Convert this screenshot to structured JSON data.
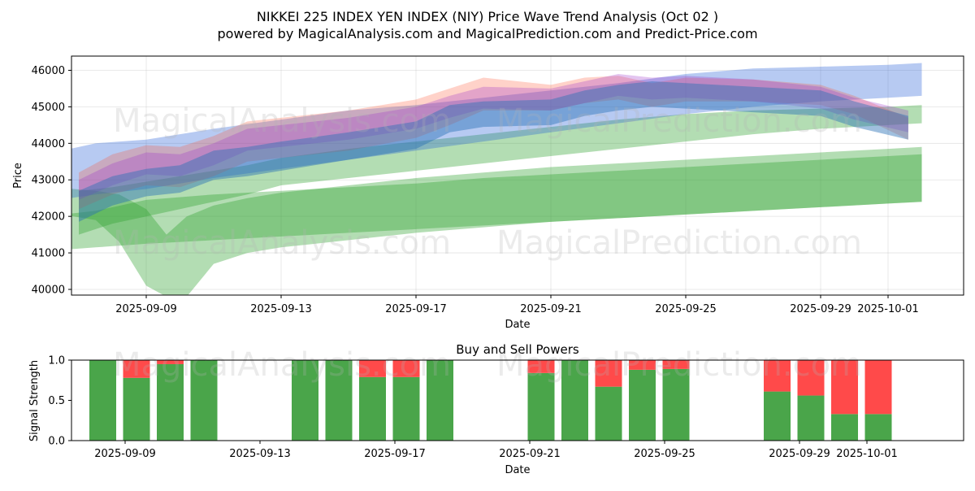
{
  "page": {
    "title_line1": "NIKKEI 225 INDEX YEN INDEX (NIY) Price Wave Trend Analysis (Oct 02 )",
    "title_line2": "powered by MagicalAnalysis.com and MagicalPrediction.com and Predict-Price.com",
    "watermarks": [
      "MagicalAnalysis.com",
      "MagicalPrediction.com"
    ]
  },
  "chart_data": [
    {
      "type": "area",
      "title": "NIKKEI 225 INDEX YEN INDEX (NIY) Price Wave Trend Analysis (Oct 02 )",
      "xlabel": "Date",
      "ylabel": "Price",
      "x_ticks": [
        "2025-09-09",
        "2025-09-13",
        "2025-09-17",
        "2025-09-21",
        "2025-09-25",
        "2025-09-29",
        "2025-10-01"
      ],
      "x_tick_days": [
        2,
        6,
        10,
        14,
        18,
        22,
        24
      ],
      "x_range_days": [
        -1.2,
        25.2
      ],
      "y_ticks": [
        40000,
        41000,
        42000,
        43000,
        44000,
        45000,
        46000
      ],
      "ylim": [
        39850,
        46400
      ],
      "grid": true,
      "series": [
        {
          "name": "band-green-wide",
          "color": "#2ca02c",
          "opacity": 0.36,
          "x": [
            -1,
            0.5,
            2,
            4,
            6,
            8,
            10,
            12,
            14,
            16,
            18,
            20,
            22,
            24,
            25
          ],
          "upper": [
            42000,
            42150,
            42450,
            42600,
            42700,
            42800,
            42900,
            43050,
            43150,
            43250,
            43350,
            43450,
            43550,
            43650,
            43700
          ],
          "lower": [
            41050,
            41150,
            41250,
            41350,
            41450,
            41550,
            41650,
            41750,
            41850,
            41950,
            42050,
            42150,
            42250,
            42350,
            42400
          ]
        },
        {
          "name": "band-green-dip",
          "color": "#2ca02c",
          "opacity": 0.36,
          "x": [
            -0.8,
            0.5,
            1.2,
            2,
            2.6,
            3.2,
            4,
            5,
            6,
            7,
            8,
            9,
            10,
            12,
            14,
            16,
            18,
            20,
            22,
            24,
            25
          ],
          "upper": [
            42800,
            42700,
            42600,
            42200,
            41500,
            42000,
            42300,
            42500,
            42650,
            42750,
            42850,
            42950,
            43050,
            43200,
            43350,
            43450,
            43550,
            43650,
            43750,
            43850,
            43900
          ],
          "lower": [
            42100,
            41900,
            41300,
            40100,
            39800,
            39800,
            40700,
            41000,
            41150,
            41250,
            41350,
            41450,
            41550,
            41700,
            41850,
            41950,
            42050,
            42150,
            42250,
            42350,
            42400
          ]
        },
        {
          "name": "band-green-mid",
          "color": "#2ca02c",
          "opacity": 0.36,
          "x": [
            0,
            1,
            2,
            3,
            4,
            5,
            6,
            8,
            10,
            12,
            14,
            16,
            18,
            20,
            22,
            24,
            25
          ],
          "upper": [
            42700,
            42800,
            42950,
            43100,
            43250,
            43400,
            43600,
            43850,
            44050,
            44250,
            44450,
            44650,
            44800,
            44900,
            44950,
            45000,
            45050
          ],
          "lower": [
            41500,
            41800,
            42000,
            42200,
            42400,
            42600,
            42850,
            43050,
            43250,
            43450,
            43650,
            43850,
            44050,
            44250,
            44400,
            44500,
            44550
          ]
        },
        {
          "name": "band-blue",
          "color": "#1f5bd6",
          "opacity": 0.32,
          "x": [
            -1,
            0.5,
            2,
            3,
            4,
            6,
            8,
            10,
            12,
            14,
            16,
            18,
            20,
            22,
            24,
            25
          ],
          "upper": [
            43700,
            44000,
            44100,
            44250,
            44400,
            44650,
            44900,
            45050,
            45250,
            45450,
            45650,
            45900,
            46050,
            46100,
            46150,
            46200
          ],
          "lower": [
            42400,
            42600,
            42750,
            42900,
            43050,
            43300,
            43550,
            43800,
            44050,
            44300,
            44550,
            44800,
            45000,
            45150,
            45250,
            45300
          ]
        },
        {
          "name": "band-orange-red",
          "color": "#ff5030",
          "opacity": 0.26,
          "x": [
            0,
            1,
            2,
            3,
            4,
            5,
            6,
            8,
            10,
            11,
            12,
            14,
            15,
            16,
            17,
            18,
            20,
            22,
            23,
            24.6
          ],
          "upper": [
            43200,
            43700,
            43950,
            43900,
            44200,
            44600,
            44700,
            44900,
            45200,
            45500,
            45800,
            45600,
            45800,
            45850,
            45650,
            45800,
            45750,
            45600,
            45300,
            44700
          ],
          "lower": [
            42200,
            42600,
            42850,
            42800,
            43100,
            43500,
            43600,
            43800,
            44150,
            44500,
            44900,
            44900,
            45100,
            45200,
            45000,
            45150,
            45150,
            45050,
            44800,
            44100
          ]
        },
        {
          "name": "band-purple",
          "color": "#9b30c8",
          "opacity": 0.28,
          "x": [
            0,
            1,
            2,
            3,
            4,
            5,
            6,
            8,
            10,
            11,
            12,
            14,
            15,
            16,
            17,
            18,
            20,
            22,
            23,
            24.6
          ],
          "upper": [
            43000,
            43450,
            43750,
            43700,
            44000,
            44400,
            44500,
            44700,
            45000,
            45300,
            45550,
            45500,
            45700,
            45900,
            45800,
            45850,
            45750,
            45550,
            45250,
            44900
          ],
          "lower": [
            42450,
            42850,
            43150,
            43100,
            43400,
            43800,
            43900,
            44100,
            44400,
            44700,
            44950,
            44900,
            45100,
            45300,
            45200,
            45250,
            45150,
            44950,
            44650,
            44300
          ]
        },
        {
          "name": "band-steelblue",
          "color": "#2a72b5",
          "opacity": 0.45,
          "x": [
            0,
            1,
            2,
            3,
            4,
            5,
            6,
            8,
            10,
            11,
            12,
            14,
            15,
            16,
            17,
            18,
            20,
            22,
            23,
            24.6
          ],
          "upper": [
            42700,
            43100,
            43300,
            43400,
            43800,
            43900,
            44050,
            44300,
            44600,
            45050,
            45150,
            45200,
            45450,
            45600,
            45700,
            45650,
            45550,
            45450,
            45150,
            44750
          ],
          "lower": [
            41850,
            42300,
            42550,
            42650,
            43000,
            43100,
            43250,
            43550,
            43850,
            44300,
            44450,
            44500,
            44750,
            44900,
            45000,
            44950,
            44850,
            44750,
            44450,
            44100
          ]
        }
      ]
    },
    {
      "type": "bar",
      "title": "Buy and Sell Powers",
      "xlabel": "Date",
      "ylabel": "Signal Strength",
      "x_ticks": [
        "2025-09-09",
        "2025-09-13",
        "2025-09-17",
        "2025-09-21",
        "2025-09-25",
        "2025-09-29",
        "2025-10-01"
      ],
      "x_tick_days": [
        2,
        6,
        10,
        14,
        18,
        22,
        24
      ],
      "y_ticks": [
        0.0,
        0.5,
        1.0
      ],
      "ylim": [
        0,
        1
      ],
      "legend": "none",
      "colors": {
        "buy": "#4aa54a",
        "sell": "#ff4a4a"
      },
      "x": [
        "2025-09-08",
        "2025-09-09",
        "2025-09-10",
        "2025-09-11",
        "2025-09-14",
        "2025-09-15",
        "2025-09-16",
        "2025-09-17",
        "2025-09-18",
        "2025-09-21",
        "2025-09-22",
        "2025-09-23",
        "2025-09-24",
        "2025-09-25",
        "2025-09-28",
        "2025-09-29",
        "2025-09-30",
        "2025-10-01"
      ],
      "x_days": [
        1,
        2,
        3,
        4,
        7,
        8,
        9,
        10,
        11,
        14,
        15,
        16,
        17,
        18,
        21,
        22,
        23,
        24
      ],
      "series": [
        {
          "name": "Buy",
          "values": [
            1.0,
            0.78,
            0.95,
            1.0,
            1.0,
            1.0,
            0.79,
            0.79,
            1.0,
            0.84,
            1.0,
            0.67,
            0.88,
            0.89,
            0.61,
            0.56,
            0.33,
            0.33
          ]
        },
        {
          "name": "Sell",
          "values": [
            0.0,
            0.22,
            0.05,
            0.0,
            0.0,
            0.0,
            0.21,
            0.21,
            0.0,
            0.16,
            0.0,
            0.33,
            0.12,
            0.11,
            0.39,
            0.44,
            0.67,
            0.67
          ]
        }
      ]
    }
  ]
}
